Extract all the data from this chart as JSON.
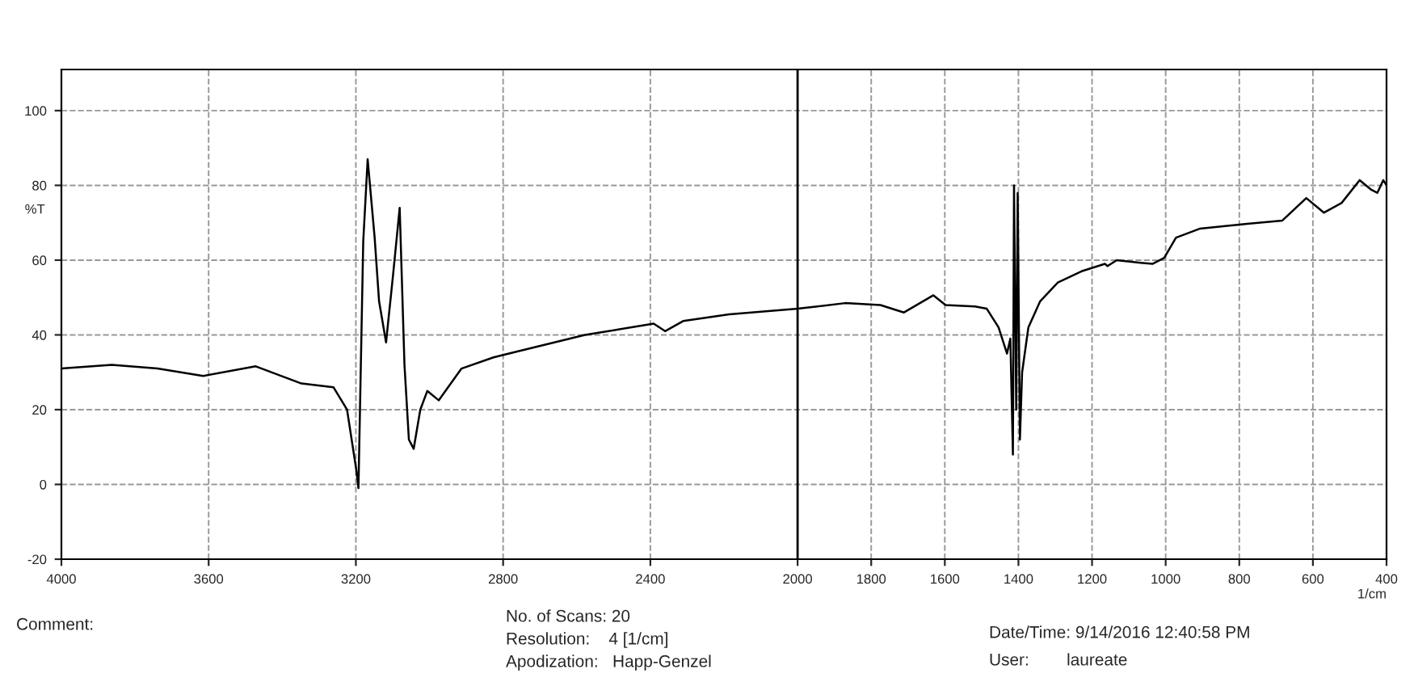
{
  "chart_data": {
    "type": "line",
    "xlabel": "1/cm",
    "ylabel": "%T",
    "x": [
      4000,
      3863,
      3739,
      3615,
      3472,
      3348,
      3261,
      3224,
      3199,
      3193,
      3180,
      3168,
      3149,
      3137,
      3118,
      3099,
      3081,
      3068,
      3056,
      3043,
      3025,
      3006,
      2975,
      2913,
      2826,
      2764,
      2578,
      2391,
      2360,
      2311,
      2186,
      2000,
      1871,
      1775,
      1711,
      1631,
      1598,
      1518,
      1486,
      1454,
      1431,
      1422,
      1415,
      1412,
      1406,
      1402,
      1396,
      1390,
      1373,
      1341,
      1293,
      1229,
      1165,
      1158,
      1133,
      1068,
      1036,
      1004,
      972,
      908,
      779,
      683,
      618,
      570,
      522,
      473,
      441,
      425,
      409,
      400
    ],
    "series": [
      {
        "color": "#000000",
        "values": [
          31,
          32,
          31,
          29,
          31.6,
          27,
          26,
          20,
          4,
          -1,
          65,
          87,
          66,
          49,
          38,
          56,
          74,
          32,
          12,
          9.5,
          20,
          25,
          22.5,
          31,
          34,
          35.5,
          40,
          43,
          41,
          43.7,
          45.5,
          47,
          48.5,
          48,
          46,
          50.6,
          48,
          47.6,
          47,
          42,
          35,
          39,
          8,
          80,
          20,
          78,
          12,
          30,
          42,
          49,
          54,
          57,
          59,
          58.4,
          60,
          59.3,
          59,
          60.6,
          66,
          68.4,
          69.7,
          70.6,
          76.6,
          72.7,
          75.3,
          81.4,
          78.8,
          78,
          81.4,
          80
        ]
      }
    ],
    "xlim": [
      4000,
      400
    ],
    "xticks": [
      4000,
      3600,
      3200,
      2800,
      2400,
      2000,
      1800,
      1600,
      1400,
      1200,
      1000,
      800,
      600,
      400
    ],
    "ylim": [
      -20,
      111
    ],
    "yticks": [
      -20,
      0,
      20,
      40,
      60,
      80,
      100
    ],
    "grid": true,
    "legend": false,
    "line_style": "solid",
    "marker": "none",
    "ref_lines": [
      {
        "axis": "x",
        "value": 2000,
        "color": "#000000",
        "line_style": "solid"
      }
    ],
    "annotations": [
      "Comment:",
      "No. of Scans: 20",
      "Resolution:    4 [1/cm]",
      "Apodization:   Happ-Genzel",
      "Date/Time: 9/14/2016 12:40:58 PM",
      "User:        laureate"
    ]
  }
}
